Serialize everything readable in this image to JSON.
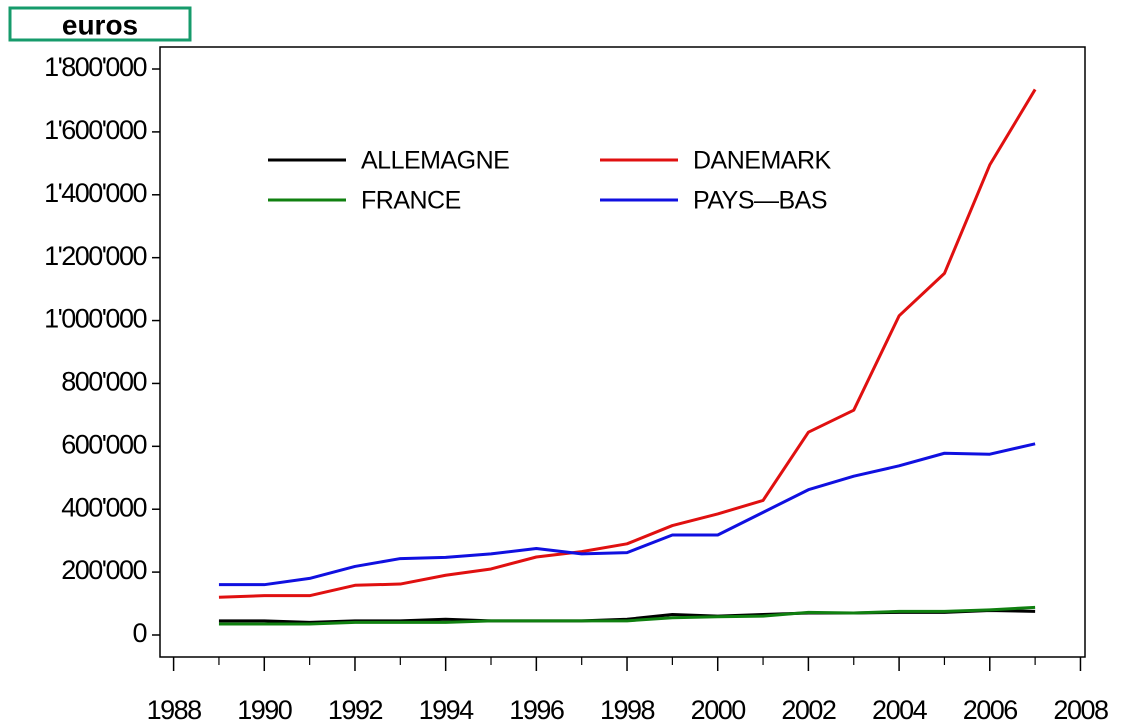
{
  "chart_data": {
    "type": "line",
    "title": "euros",
    "x": [
      1989,
      1990,
      1991,
      1992,
      1993,
      1994,
      1995,
      1996,
      1997,
      1998,
      1999,
      2000,
      2001,
      2002,
      2003,
      2004,
      2005,
      2006,
      2007
    ],
    "series": [
      {
        "name": "ALLEMAGNE",
        "color": "#000000",
        "values": [
          45000,
          45000,
          40000,
          45000,
          45000,
          50000,
          45000,
          45000,
          45000,
          50000,
          65000,
          60000,
          65000,
          70000,
          70000,
          72000,
          72000,
          78000,
          75000
        ]
      },
      {
        "name": "DANEMARK",
        "color": "#e01010",
        "values": [
          120000,
          125000,
          125000,
          158000,
          162000,
          190000,
          210000,
          248000,
          265000,
          290000,
          348000,
          385000,
          428000,
          645000,
          715000,
          1015000,
          1150000,
          1495000,
          1735000
        ]
      },
      {
        "name": "FRANCE",
        "color": "#108010",
        "values": [
          35000,
          35000,
          35000,
          40000,
          40000,
          40000,
          45000,
          45000,
          45000,
          45000,
          55000,
          58000,
          60000,
          72000,
          70000,
          75000,
          75000,
          80000,
          88000
        ]
      },
      {
        "name": "PAYS—BAS",
        "color": "#1010e0",
        "values": [
          160000,
          160000,
          180000,
          218000,
          243000,
          247000,
          258000,
          275000,
          258000,
          262000,
          318000,
          318000,
          390000,
          462000,
          505000,
          538000,
          578000,
          575000,
          608000
        ]
      }
    ],
    "xlim": [
      1987.7,
      2008.1
    ],
    "xticks": [
      1988,
      1990,
      1992,
      1994,
      1996,
      1998,
      2000,
      2002,
      2004,
      2006,
      2008
    ],
    "xminorticks": [
      1989,
      1991,
      1993,
      1995,
      1997,
      1999,
      2001,
      2003,
      2005,
      2007
    ],
    "ylim": [
      -70000,
      1870000
    ],
    "yticks": [
      0,
      {
        "value": 200000,
        "label": "200'000"
      },
      {
        "value": 400000,
        "label": "400'000"
      },
      {
        "value": 600000,
        "label": "600'000"
      },
      {
        "value": 800000,
        "label": "800'000"
      },
      {
        "value": 1000000,
        "label": "1'000'000"
      },
      {
        "value": 1200000,
        "label": "1'200'000"
      },
      {
        "value": 1400000,
        "label": "1'400'000"
      },
      {
        "value": 1600000,
        "label": "1'600'000"
      },
      {
        "value": 1800000,
        "label": "1'800'000"
      }
    ],
    "legend": "upper left"
  }
}
